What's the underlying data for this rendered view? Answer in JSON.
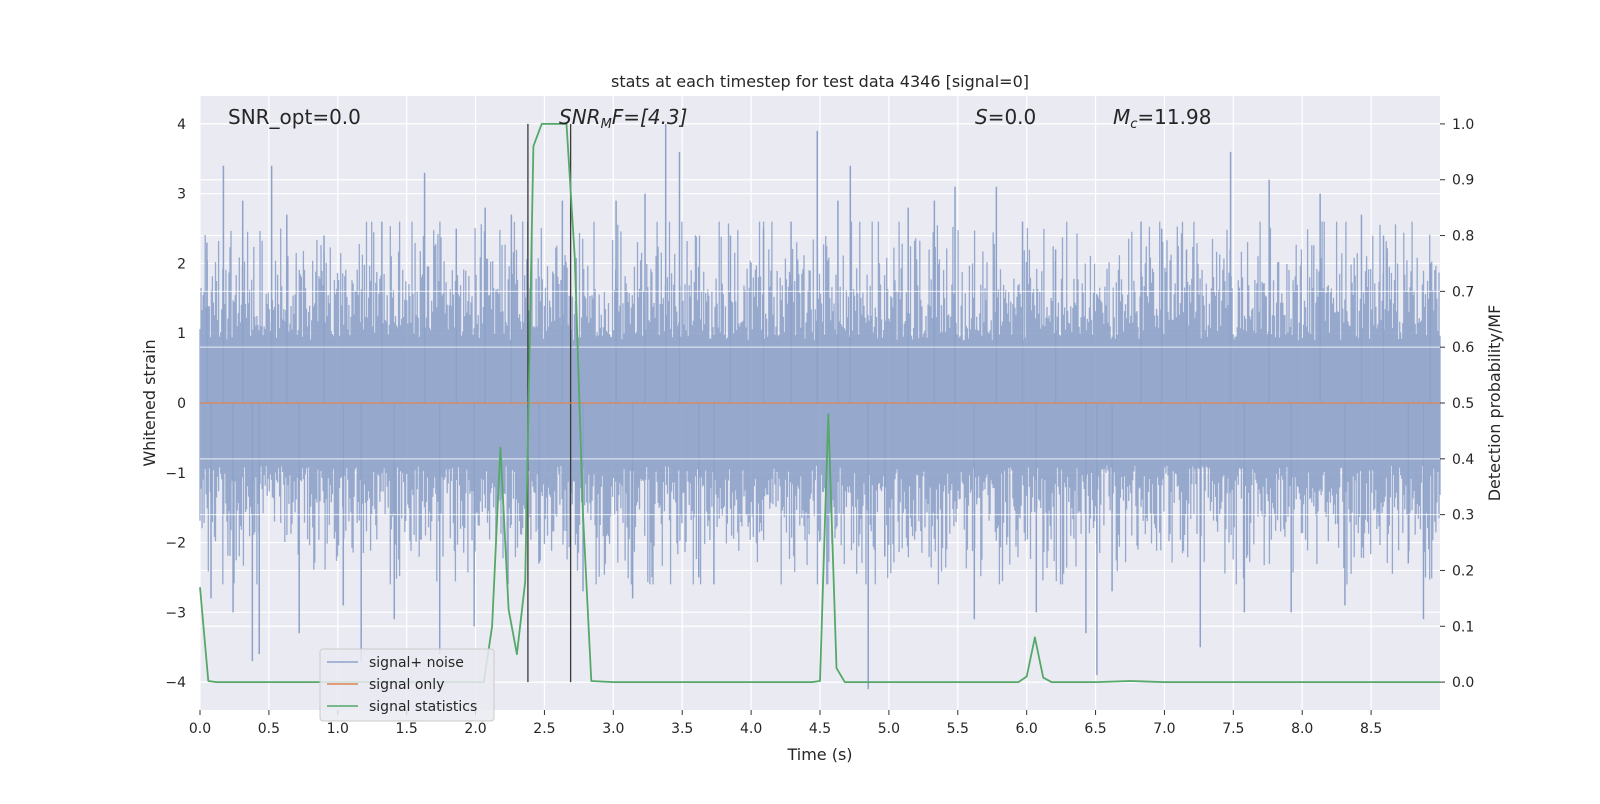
{
  "chart_data": {
    "type": "line",
    "title": "stats at each timestep for test data 4346 [signal=0]",
    "xlabel": "Time (s)",
    "ylabel": "Whitened strain",
    "ylabel_right": "Detection probability/MF",
    "xlim": [
      0.0,
      9.0
    ],
    "ylim": [
      -4.4,
      4.4
    ],
    "ylim_right": [
      -0.05,
      1.05
    ],
    "xticks": [
      0.0,
      0.5,
      1.0,
      1.5,
      2.0,
      2.5,
      3.0,
      3.5,
      4.0,
      4.5,
      5.0,
      5.5,
      6.0,
      6.5,
      7.0,
      7.5,
      8.0,
      8.5
    ],
    "xtick_labels": [
      "0.0",
      "0.5",
      "1.0",
      "1.5",
      "2.0",
      "2.5",
      "3.0",
      "3.5",
      "4.0",
      "4.5",
      "5.0",
      "5.5",
      "6.0",
      "6.5",
      "7.0",
      "7.5",
      "8.0",
      "8.5"
    ],
    "yticks": [
      -4,
      -3,
      -2,
      -1,
      0,
      1,
      2,
      3,
      4
    ],
    "ytick_labels": [
      "−4",
      "−3",
      "−2",
      "−1",
      "0",
      "1",
      "2",
      "3",
      "4"
    ],
    "yticks_right": [
      0.0,
      0.1,
      0.2,
      0.3,
      0.4,
      0.5,
      0.6,
      0.7,
      0.8,
      0.9,
      1.0
    ],
    "ytick_labels_right": [
      "0.0",
      "0.1",
      "0.2",
      "0.3",
      "0.4",
      "0.5",
      "0.6",
      "0.7",
      "0.8",
      "0.9",
      "1.0"
    ],
    "grid": true,
    "legend_position": "lower-left",
    "annotations": {
      "snr_opt": "SNR_opt=0.0",
      "snr_mf_main": "SNR",
      "snr_mf_sub": "M",
      "snr_mf_rest": "F=[4.3]",
      "s_main": "S",
      "s_rest": "=0.0",
      "mc_main": "M",
      "mc_sub": "c",
      "mc_rest": "=11.98"
    },
    "vertical_lines_x": [
      2.38,
      2.69
    ],
    "series": [
      {
        "name": "signal+ noise",
        "color": "#8da2c9",
        "description_type": "noise",
        "spikes": [
          [
            0.05,
            2.3
          ],
          [
            0.08,
            -2.8
          ],
          [
            0.17,
            3.4
          ],
          [
            0.24,
            -3.0
          ],
          [
            0.31,
            2.9
          ],
          [
            0.38,
            -3.7
          ],
          [
            0.43,
            -3.6
          ],
          [
            0.52,
            3.4
          ],
          [
            0.63,
            2.7
          ],
          [
            0.72,
            -3.3
          ],
          [
            0.9,
            2.4
          ],
          [
            1.04,
            -2.9
          ],
          [
            1.17,
            -3.7
          ],
          [
            1.32,
            2.6
          ],
          [
            1.41,
            -3.1
          ],
          [
            1.63,
            3.3
          ],
          [
            1.74,
            -3.6
          ],
          [
            1.86,
            2.5
          ],
          [
            1.99,
            -3.2
          ],
          [
            2.07,
            2.8
          ],
          [
            2.26,
            2.7
          ],
          [
            2.46,
            -2.3
          ],
          [
            2.63,
            2.9
          ],
          [
            2.78,
            -2.7
          ],
          [
            3.02,
            2.9
          ],
          [
            3.14,
            -2.8
          ],
          [
            3.23,
            3.0
          ],
          [
            3.38,
            4.0
          ],
          [
            3.48,
            3.6
          ],
          [
            3.62,
            -2.5
          ],
          [
            3.73,
            -2.6
          ],
          [
            3.85,
            2.4
          ],
          [
            4.09,
            2.5
          ],
          [
            4.29,
            2.6
          ],
          [
            4.48,
            3.9
          ],
          [
            4.63,
            2.9
          ],
          [
            4.72,
            3.4
          ],
          [
            4.85,
            -4.1
          ],
          [
            4.97,
            -2.2
          ],
          [
            5.14,
            2.8
          ],
          [
            5.33,
            2.9
          ],
          [
            5.48,
            3.1
          ],
          [
            5.62,
            -3.1
          ],
          [
            5.78,
            3.1
          ],
          [
            5.97,
            2.6
          ],
          [
            6.07,
            -3.0
          ],
          [
            6.21,
            2.2
          ],
          [
            6.43,
            -3.3
          ],
          [
            6.51,
            -3.9
          ],
          [
            6.62,
            -2.7
          ],
          [
            6.83,
            2.6
          ],
          [
            6.98,
            2.5
          ],
          [
            7.16,
            2.2
          ],
          [
            7.26,
            -3.5
          ],
          [
            7.48,
            3.6
          ],
          [
            7.58,
            -3.0
          ],
          [
            7.76,
            3.2
          ],
          [
            7.92,
            -3.0
          ],
          [
            8.13,
            3.0
          ],
          [
            8.31,
            -2.9
          ],
          [
            8.43,
            2.7
          ],
          [
            8.59,
            2.4
          ],
          [
            8.77,
            -2.3
          ],
          [
            8.88,
            -3.1
          ],
          [
            8.93,
            2.0
          ]
        ]
      },
      {
        "name": "signal only",
        "color": "#dd8452",
        "x": [
          0.0,
          9.0
        ],
        "values": [
          0.0,
          0.0
        ]
      },
      {
        "name": "signal statistics",
        "color": "#55a868",
        "axis": "right",
        "x": [
          0.0,
          0.06,
          0.12,
          0.5,
          1.0,
          1.5,
          2.0,
          2.06,
          2.12,
          2.18,
          2.24,
          2.3,
          2.36,
          2.42,
          2.48,
          2.54,
          2.6,
          2.66,
          2.72,
          2.78,
          2.84,
          3.0,
          3.5,
          4.0,
          4.44,
          4.5,
          4.56,
          4.62,
          4.68,
          5.0,
          5.5,
          5.94,
          6.0,
          6.06,
          6.12,
          6.18,
          6.5,
          6.75,
          7.0,
          7.5,
          8.0,
          8.5,
          9.0
        ],
        "values": [
          0.17,
          0.002,
          0.0,
          0.0,
          0.0,
          0.0,
          0.0,
          0.0,
          0.1,
          0.42,
          0.13,
          0.05,
          0.18,
          0.96,
          1.0,
          1.0,
          1.0,
          1.0,
          0.76,
          0.3,
          0.002,
          0.0,
          0.0,
          0.0,
          0.0,
          0.002,
          0.48,
          0.025,
          0.0,
          0.0,
          0.0,
          0.0,
          0.01,
          0.08,
          0.008,
          0.0,
          0.0,
          0.002,
          0.0,
          0.0,
          0.0,
          0.0,
          0.0
        ]
      }
    ]
  }
}
